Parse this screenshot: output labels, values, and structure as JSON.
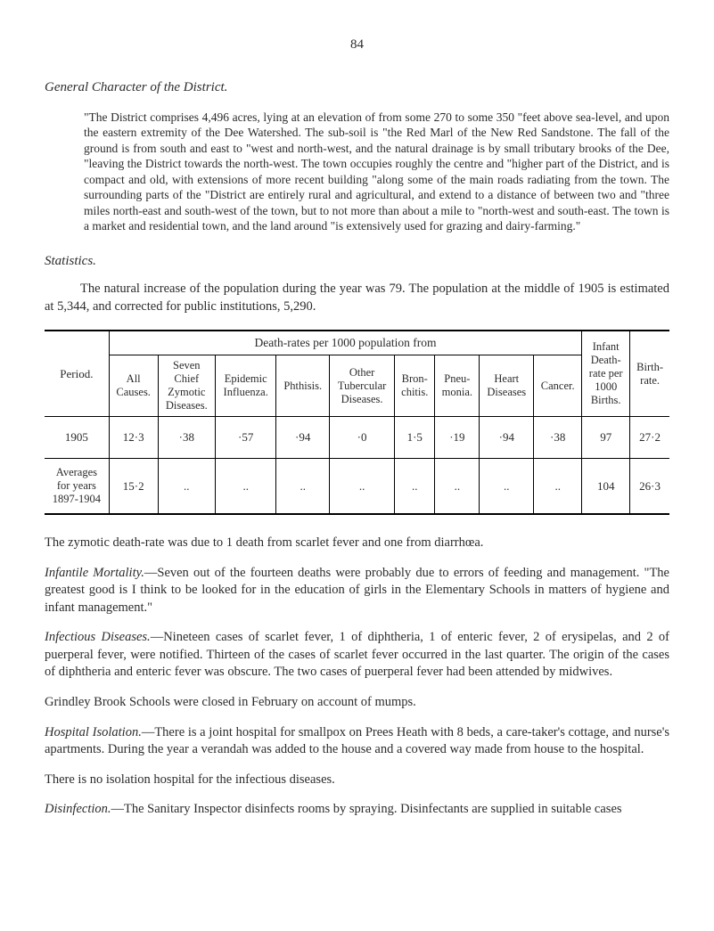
{
  "page_number": "84",
  "section_heading": "General Character of the District.",
  "quoted_text": "\"The District comprises 4,496 acres, lying at an elevation of from some 270 to some 350 \"feet above sea-level, and upon the eastern extremity of the Dee Watershed. The sub-soil is \"the Red Marl of the New Red Sandstone. The fall of the ground is from south and east to \"west and north-west, and the natural drainage is by small tributary brooks of the Dee, \"leaving the District towards the north-west. The town occupies roughly the centre and \"higher part of the District, and is compact and old, with extensions of more recent building \"along some of the main roads radiating from the town. The surrounding parts of the \"District are entirely rural and agricultural, and extend to a distance of between two and \"three miles north-east and south-west of the town, but to not more than about a mile to \"north-west and south-east. The town is a market and residential town, and the land around \"is extensively used for grazing and dairy-farming.\"",
  "statistics_heading": "Statistics.",
  "stat_intro": "The natural increase of the population during the year was 79. The population at the middle of 1905 is estimated at 5,344, and corrected for public institutions, 5,290.",
  "table": {
    "death_rates_title": "Death-rates per 1000 population from",
    "columns": {
      "period": "Period.",
      "all_causes": "All\nCauses.",
      "seven_chief": "Seven\nChief\nZymotic\nDiseases.",
      "epidemic": "Epidemic\nInfluenza.",
      "phthisis": "Phthisis.",
      "other_tub": "Other\nTubercular\nDiseases.",
      "bronchitis": "Bron-\nchitis.",
      "pneumonia": "Pneu-\nmonia.",
      "heart": "Heart\nDiseases",
      "cancer": "Cancer.",
      "infant": "Infant\nDeath-\nrate per\n1000\nBirths.",
      "birth": "Birth-\nrate."
    },
    "rows": [
      {
        "period": "1905",
        "all": "12·3",
        "seven": "·38",
        "epi": "·57",
        "phth": "·94",
        "other": "·0",
        "bron": "1·5",
        "pneu": "·19",
        "heart": "·94",
        "cancer": "·38",
        "infant": "97",
        "birth": "27·2"
      },
      {
        "period": "Averages\nfor years\n1897-1904",
        "all": "15·2",
        "seven": "..",
        "epi": "..",
        "phth": "..",
        "other": "..",
        "bron": "..",
        "pneu": "..",
        "heart": "..",
        "cancer": "..",
        "infant": "104",
        "birth": "26·3"
      }
    ]
  },
  "body_paragraphs": {
    "p1": "The zymotic death-rate was due to 1 death from scarlet fever and one from diarrhœa.",
    "p2_lead": "Infantile Mortality.",
    "p2": "—Seven out of the fourteen deaths were probably due to errors of feeding and management. \"The greatest good is I think to be looked for in the education of girls in the Elementary Schools in matters of hygiene and infant management.\"",
    "p3_lead": "Infectious Diseases.",
    "p3": "—Nineteen cases of scarlet fever, 1 of diphtheria, 1 of enteric fever, 2 of erysipelas, and 2 of puerperal fever, were notified. Thirteen of the cases of scarlet fever occurred in the last quarter. The origin of the cases of diphtheria and enteric fever was obscure. The two cases of puerperal fever had been attended by midwives.",
    "p4": "Grindley Brook Schools were closed in February on account of mumps.",
    "p5_lead": "Hospital Isolation.",
    "p5": "—There is a joint hospital for smallpox on Prees Heath with 8 beds, a care-taker's cottage, and nurse's apartments. During the year a verandah was added to the house and a covered way made from house to the hospital.",
    "p6": "There is no isolation hospital for the infectious diseases.",
    "p7_lead": "Disinfection.",
    "p7": "—The Sanitary Inspector disinfects rooms by spraying. Disinfectants are supplied in suitable cases"
  }
}
